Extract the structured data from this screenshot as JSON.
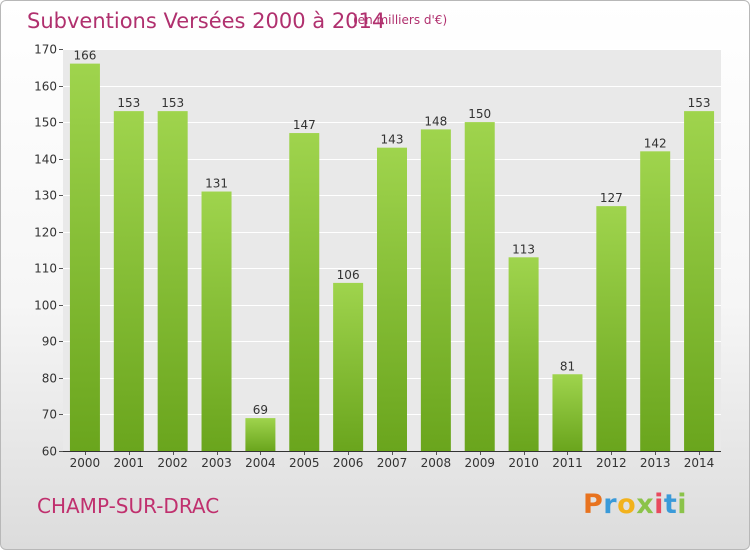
{
  "title": "Subventions Versées 2000 à 2014",
  "subtitle": "(en milliers d'€)",
  "commune": "CHAMP-SUR-DRAC",
  "logo": {
    "letters": [
      "P",
      "r",
      "o",
      "x",
      "i",
      "t",
      "i"
    ],
    "colors": [
      "#e8731f",
      "#3a9ad9",
      "#f2b21c",
      "#8bc34a",
      "#e84a5f",
      "#3a9ad9",
      "#8bc34a"
    ]
  },
  "chart_data": {
    "type": "bar",
    "categories": [
      "2000",
      "2001",
      "2002",
      "2003",
      "2004",
      "2005",
      "2006",
      "2007",
      "2008",
      "2009",
      "2010",
      "2011",
      "2012",
      "2013",
      "2014"
    ],
    "values": [
      166,
      153,
      153,
      131,
      69,
      147,
      106,
      143,
      148,
      150,
      113,
      81,
      127,
      142,
      153
    ],
    "ylim": [
      60,
      170
    ],
    "yticks": [
      60,
      70,
      80,
      90,
      100,
      110,
      120,
      130,
      140,
      150,
      160,
      170
    ],
    "grid": true,
    "bar_color": "#8cc43c"
  }
}
